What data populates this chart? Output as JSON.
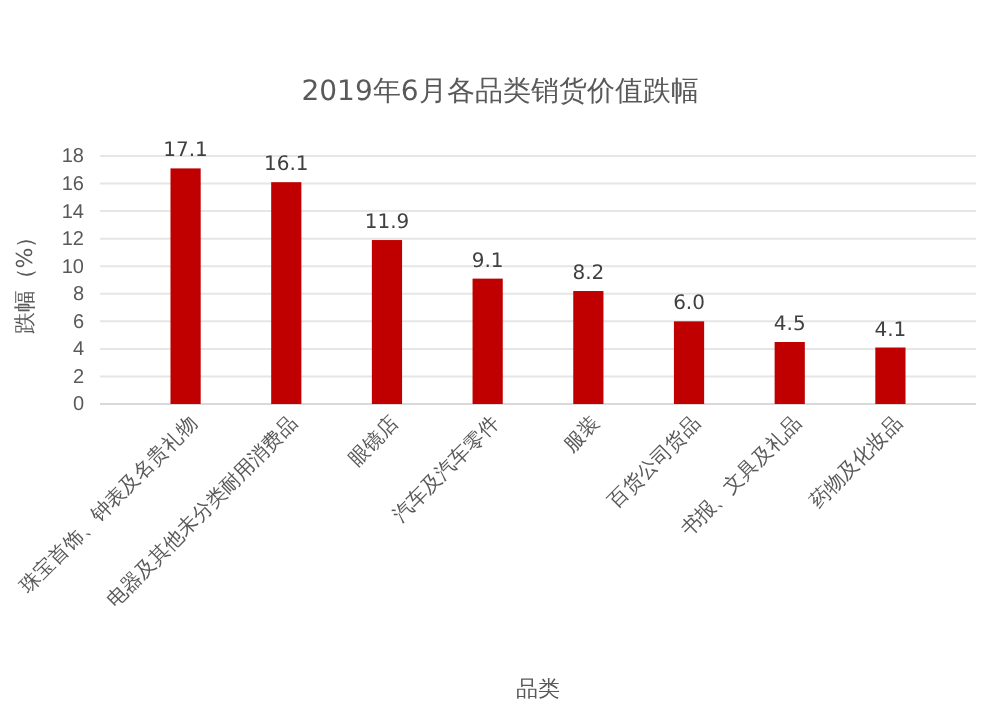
{
  "chart_data": {
    "type": "bar",
    "title": "2019年6月各品类销货价值跌幅",
    "xlabel": "品类",
    "ylabel": "跌幅（%）",
    "categories": [
      "珠宝首饰、钟表及名贵礼物",
      "电器及其他未分类耐用消费品",
      "眼镜店",
      "汽车及汽车零件",
      "服装",
      "百货公司货品",
      "书报、文具及礼品",
      "药物及化妆品"
    ],
    "values": [
      17.1,
      16.1,
      11.9,
      9.1,
      8.2,
      6.0,
      4.5,
      4.1
    ],
    "value_labels": [
      "17.1",
      "16.1",
      "11.9",
      "9.1",
      "8.2",
      "6.0",
      "4.5",
      "4.1"
    ],
    "color": "#c00000",
    "ylim": [
      0,
      18
    ],
    "yticks": [
      0,
      2,
      4,
      6,
      8,
      10,
      12,
      14,
      16,
      18
    ],
    "grid": "y"
  }
}
